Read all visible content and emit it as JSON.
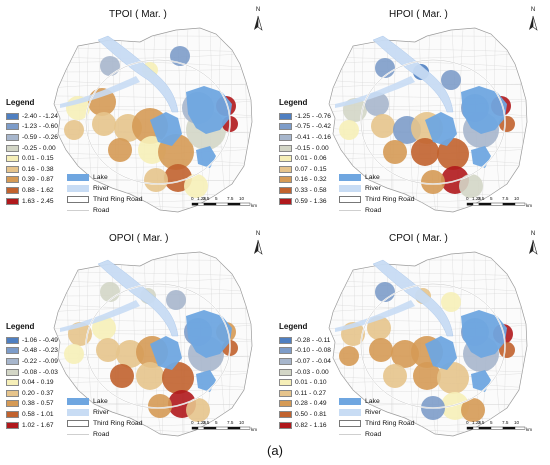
{
  "caption": "(a)",
  "common": {
    "legend_heading": "Legend",
    "north_label": "N",
    "scale_ticks": [
      "0",
      "1.25",
      "2.5",
      "5",
      "7.5",
      "10"
    ],
    "scale_unit": "km",
    "reference_layers": [
      {
        "label": "Lake",
        "color": "#6fa6e0"
      },
      {
        "label": "River",
        "color": "#c8dcf4"
      },
      {
        "label": "Third Ring Road",
        "color": "#ffffff"
      },
      {
        "label": "Road",
        "color": "#ffffff"
      }
    ]
  },
  "panels": [
    {
      "title": "TPOI ( Mar. )",
      "legend": [
        {
          "range": "-2.40 - -1.24",
          "color": "#4f7fc1"
        },
        {
          "range": "-1.23 - -0.60",
          "color": "#7d9cc9"
        },
        {
          "range": "-0.59 - -0.26",
          "color": "#a7b6cc"
        },
        {
          "range": "-0.25 - 0.00",
          "color": "#d3d6c6"
        },
        {
          "range": "0.01 - 0.15",
          "color": "#f6efb8"
        },
        {
          "range": "0.16 - 0.38",
          "color": "#e6c48c"
        },
        {
          "range": "0.39 - 0.87",
          "color": "#d59a55"
        },
        {
          "range": "0.88 - 1.62",
          "color": "#c1622e"
        },
        {
          "range": "1.63 - 2.45",
          "color": "#b0181c"
        }
      ]
    },
    {
      "title": "HPOI ( Mar. )",
      "legend": [
        {
          "range": "-1.25 - -0.76",
          "color": "#4f7fc1"
        },
        {
          "range": "-0.75 - -0.42",
          "color": "#7d9cc9"
        },
        {
          "range": "-0.41 - -0.16",
          "color": "#a7b6cc"
        },
        {
          "range": "-0.15 - 0.00",
          "color": "#d3d6c6"
        },
        {
          "range": "0.01 - 0.06",
          "color": "#f6efb8"
        },
        {
          "range": "0.07 - 0.15",
          "color": "#e6c48c"
        },
        {
          "range": "0.16 - 0.32",
          "color": "#d59a55"
        },
        {
          "range": "0.33 - 0.58",
          "color": "#c1622e"
        },
        {
          "range": "0.59 - 1.36",
          "color": "#b0181c"
        }
      ]
    },
    {
      "title": "OPOI ( Mar. )",
      "legend": [
        {
          "range": "-1.06 - -0.49",
          "color": "#4f7fc1"
        },
        {
          "range": "-0.48 - -0.23",
          "color": "#7d9cc9"
        },
        {
          "range": "-0.22 - -0.09",
          "color": "#a7b6cc"
        },
        {
          "range": "-0.08 - -0.03",
          "color": "#d3d6c6"
        },
        {
          "range": "0.04 - 0.19",
          "color": "#f6efb8"
        },
        {
          "range": "0.20 - 0.37",
          "color": "#e6c48c"
        },
        {
          "range": "0.38 - 0.57",
          "color": "#d59a55"
        },
        {
          "range": "0.58 - 1.01",
          "color": "#c1622e"
        },
        {
          "range": "1.02 - 1.67",
          "color": "#b0181c"
        }
      ]
    },
    {
      "title": "CPOI ( Mar. )",
      "legend": [
        {
          "range": "-0.28 - -0.11",
          "color": "#4f7fc1"
        },
        {
          "range": "-0.10 - -0.08",
          "color": "#7d9cc9"
        },
        {
          "range": "-0.07 - -0.04",
          "color": "#a7b6cc"
        },
        {
          "range": "-0.03 - 0.00",
          "color": "#d3d6c6"
        },
        {
          "range": "0.01 - 0.10",
          "color": "#f6efb8"
        },
        {
          "range": "0.11 - 0.27",
          "color": "#e6c48c"
        },
        {
          "range": "0.28 - 0.49",
          "color": "#d59a55"
        },
        {
          "range": "0.50 - 0.81",
          "color": "#c1622e"
        },
        {
          "range": "0.82 - 1.16",
          "color": "#b0181c"
        }
      ]
    }
  ]
}
